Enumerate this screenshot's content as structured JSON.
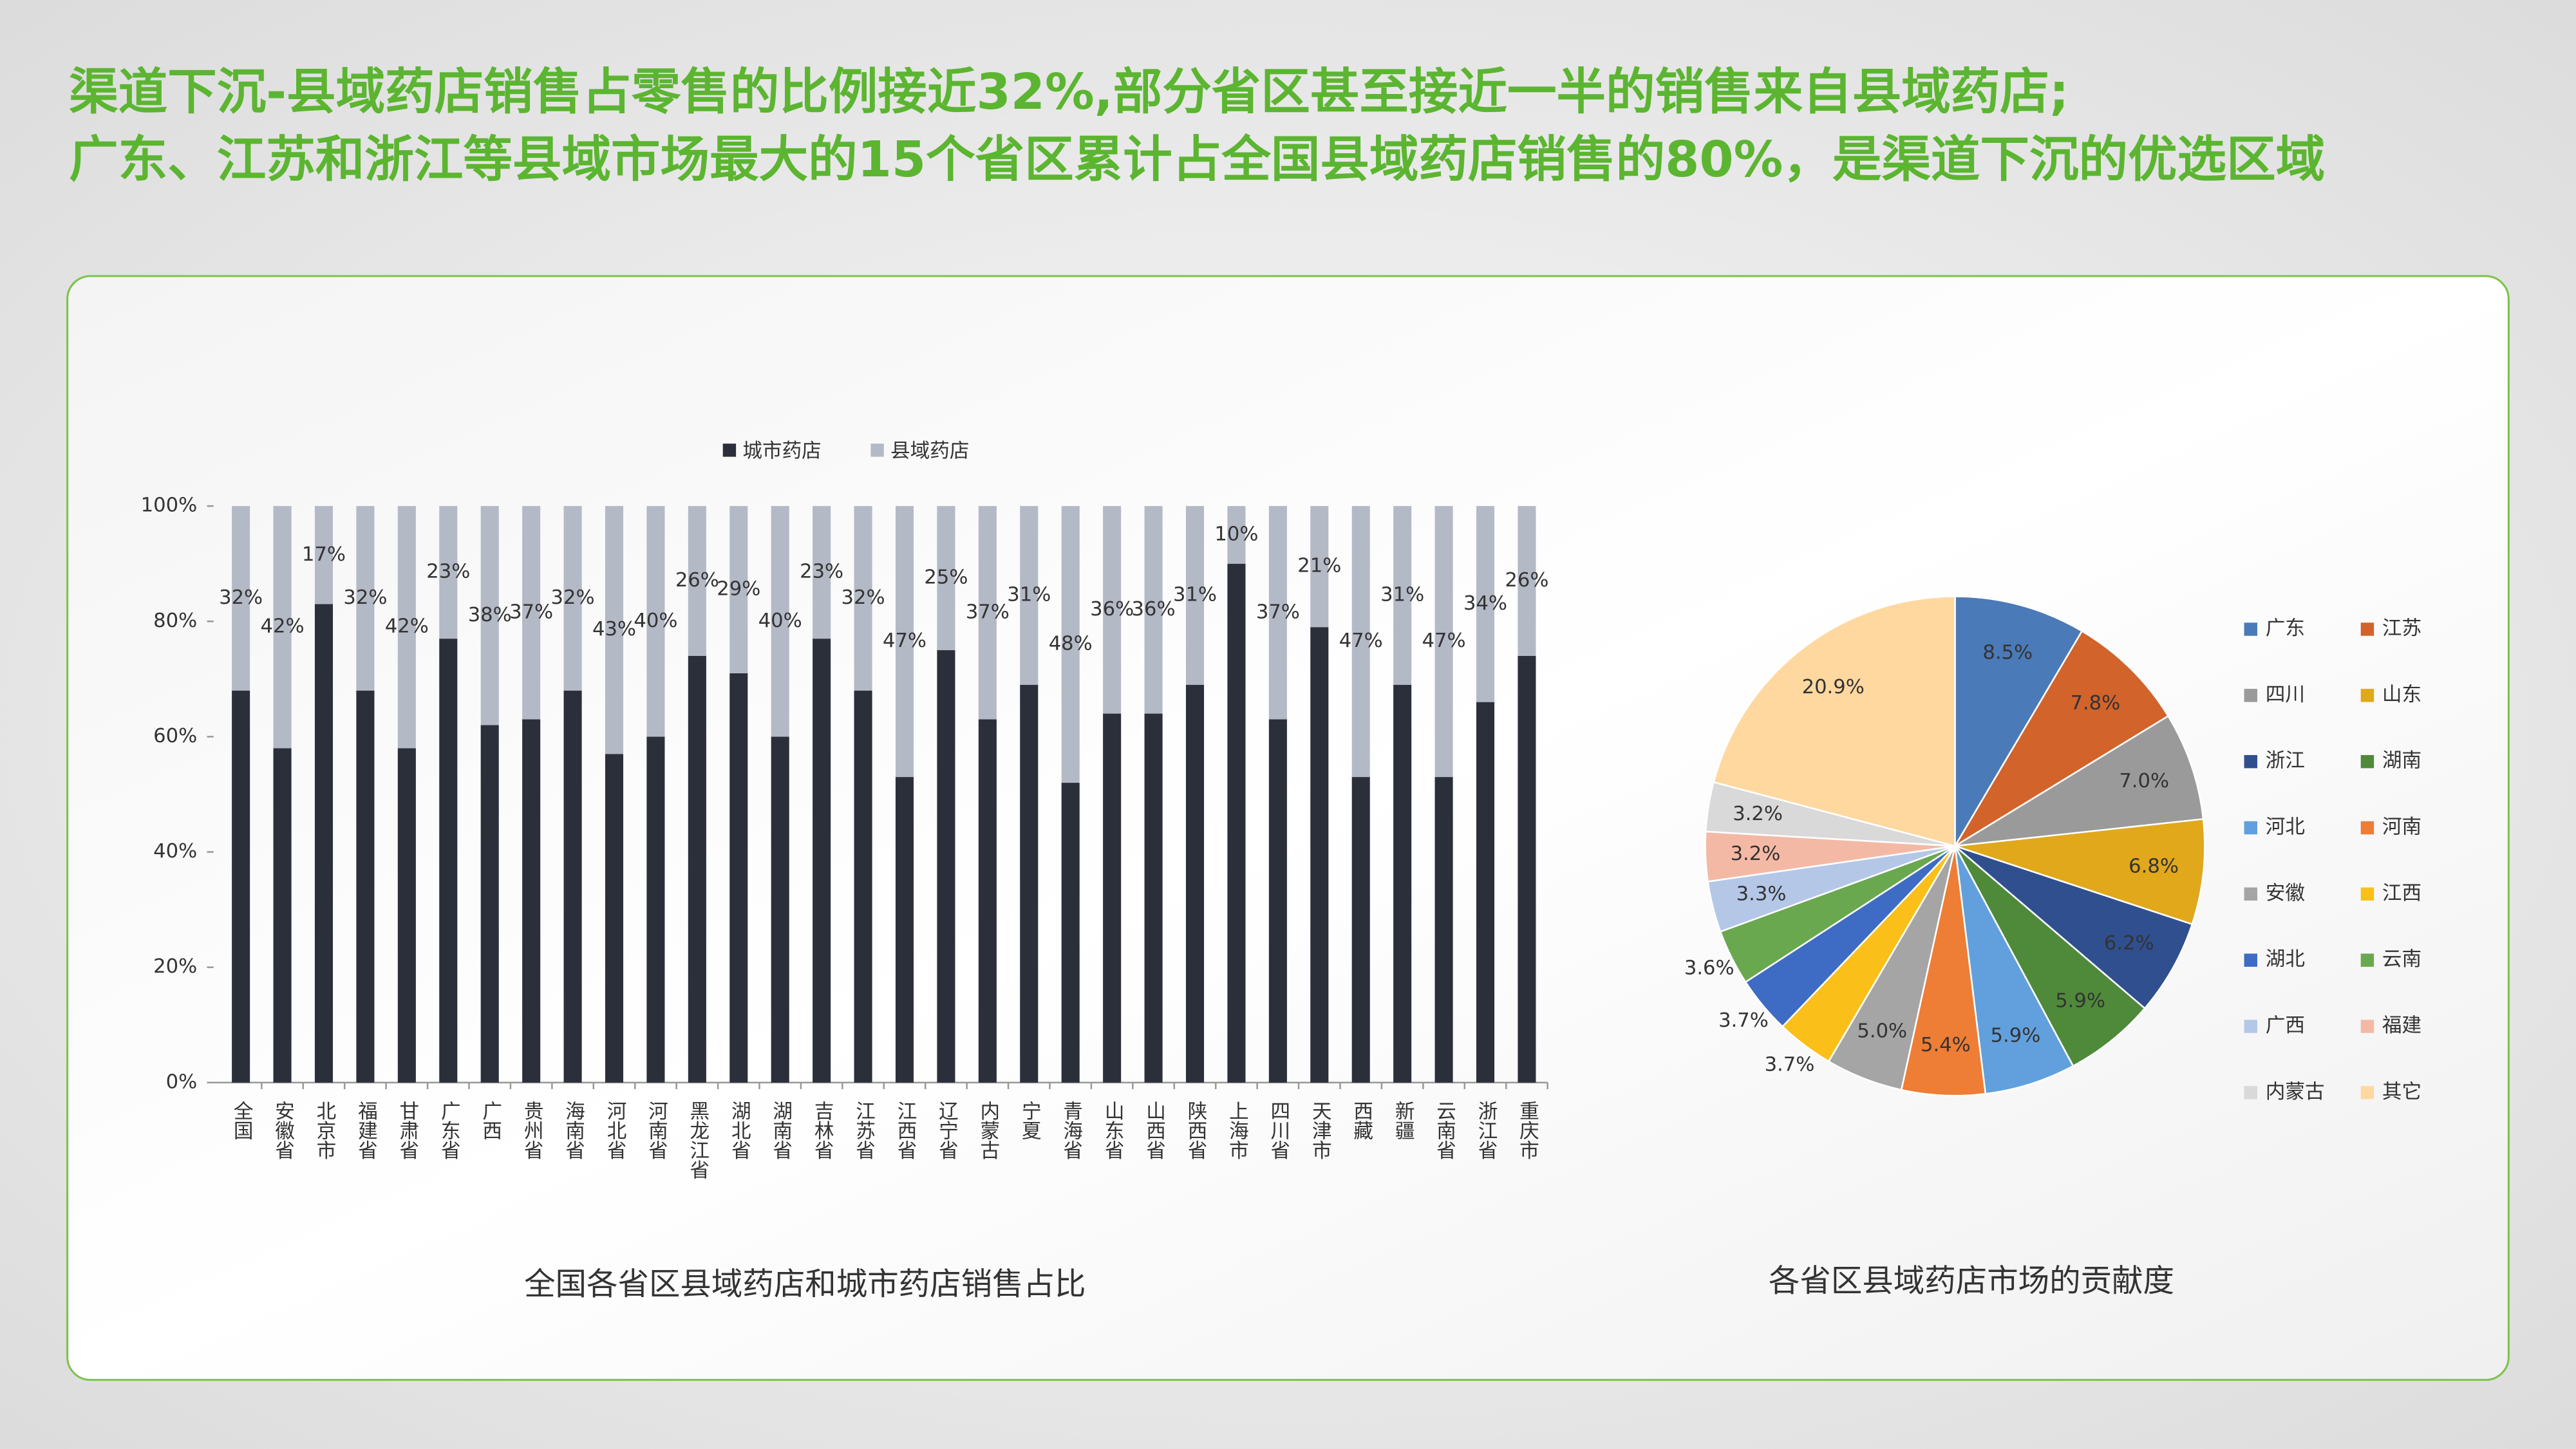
{
  "header": {
    "title_lines": [
      "渠道下沉-县域药店销售占零售的比例接近32%,部分省区甚至接近一半的销售来自县域药店;",
      "广东、江苏和浙江等县域市场最大的15个省区累计占全国县域药店销售的80%，是渠道下沉的优选区域"
    ]
  },
  "chart_data": [
    {
      "type": "bar",
      "stacked": true,
      "title": "全国各省区县域药店和城市药店销售占比",
      "categories": [
        "全国",
        "安徽省",
        "北京市",
        "福建省",
        "甘肃省",
        "广东省",
        "广西",
        "贵州省",
        "海南省",
        "河北省",
        "河南省",
        "黑龙江省",
        "湖北省",
        "湖南省",
        "吉林省",
        "江苏省",
        "江西省",
        "辽宁省",
        "内蒙古",
        "宁夏",
        "青海省",
        "山东省",
        "山西省",
        "陕西省",
        "上海市",
        "四川省",
        "天津市",
        "西藏",
        "新疆",
        "云南省",
        "浙江省",
        "重庆市"
      ],
      "series": [
        {
          "name": "城市药店",
          "color": "#2b2f3a",
          "values": [
            68,
            58,
            83,
            68,
            58,
            77,
            62,
            63,
            68,
            57,
            60,
            74,
            71,
            60,
            77,
            68,
            53,
            75,
            63,
            69,
            52,
            64,
            64,
            69,
            90,
            63,
            79,
            53,
            69,
            53,
            66,
            74
          ]
        },
        {
          "name": "县域药店",
          "color": "#b4b9c6",
          "values": [
            32,
            42,
            17,
            32,
            42,
            23,
            38,
            37,
            32,
            43,
            40,
            26,
            29,
            40,
            23,
            32,
            47,
            25,
            37,
            31,
            48,
            36,
            36,
            31,
            10,
            37,
            21,
            47,
            31,
            47,
            34,
            26
          ],
          "value_labels": [
            "32%",
            "42%",
            "17%",
            "32%",
            "42%",
            "23%",
            "38%",
            "37%",
            "32%",
            "43%",
            "40%",
            "26%",
            "29%",
            "40%",
            "23%",
            "32%",
            "47%",
            "25%",
            "37%",
            "31%",
            "48%",
            "36%",
            "36%",
            "31%",
            "10%",
            "37%",
            "21%",
            "47%",
            "31%",
            "47%",
            "34%",
            "26%"
          ]
        }
      ],
      "ylim": [
        0,
        100
      ],
      "yticks": [
        {
          "value": 0,
          "label": "0%"
        },
        {
          "value": 20,
          "label": "20%"
        },
        {
          "value": 40,
          "label": "40%"
        },
        {
          "value": 60,
          "label": "60%"
        },
        {
          "value": 80,
          "label": "80%"
        },
        {
          "value": 100,
          "label": "100%"
        }
      ],
      "legend": "top"
    },
    {
      "type": "pie",
      "title": "各省区县域药店市场的贡献度",
      "categories": [
        "广东",
        "江苏",
        "四川",
        "山东",
        "浙江",
        "湖南",
        "河北",
        "河南",
        "安徽",
        "江西",
        "湖北",
        "云南",
        "广西",
        "福建",
        "内蒙古",
        "其它"
      ],
      "values": [
        8.5,
        7.8,
        7.0,
        6.8,
        6.2,
        5.9,
        5.9,
        5.4,
        5.0,
        3.7,
        3.7,
        3.6,
        3.3,
        3.2,
        3.2,
        20.9
      ],
      "value_labels": [
        "8.5%",
        "7.8%",
        "7.0%",
        "6.8%",
        "6.2%",
        "5.9%",
        "5.9%",
        "5.4%",
        "5.0%",
        "3.7%",
        "3.7%",
        "3.6%",
        "3.3%",
        "3.2%",
        "3.2%",
        "20.9%"
      ],
      "colors": [
        "#4a7ab8",
        "#d2632a",
        "#9a9a9a",
        "#e0a81a",
        "#2f4f8f",
        "#4f8a3a",
        "#62a0dd",
        "#ee7d35",
        "#a5a5a5",
        "#fbbf1a",
        "#3e6cc4",
        "#6aa84f",
        "#b4c7e7",
        "#f4b9a5",
        "#d9d9d9",
        "#ffd8a0"
      ],
      "legend": "right"
    }
  ]
}
